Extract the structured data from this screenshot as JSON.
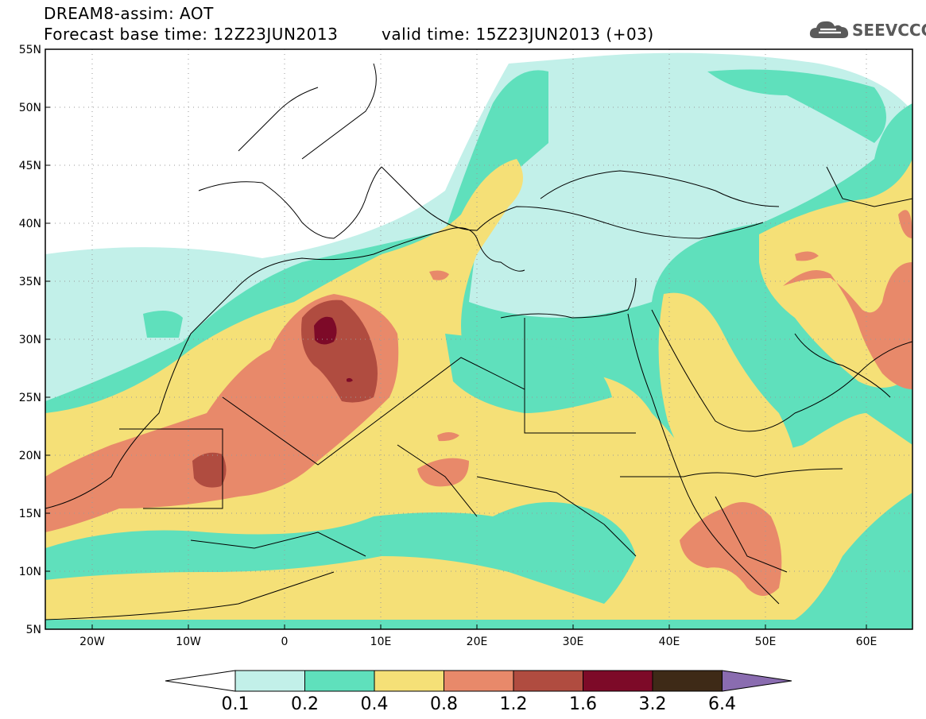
{
  "header": {
    "line1": "DREAM8-assim: AOT",
    "line2": "Forecast base time: 12Z23JUN2013",
    "valid": "valid time: 15Z23JUN2013 (+03)"
  },
  "logo": {
    "icon": "cloud-icon",
    "text": "SEEVCCC"
  },
  "map": {
    "lat_labels": [
      "55N",
      "50N",
      "45N",
      "40N",
      "35N",
      "30N",
      "25N",
      "20N",
      "15N",
      "10N",
      "5N"
    ],
    "lon_labels": [
      "20W",
      "10W",
      "0",
      "10E",
      "20E",
      "30E",
      "40E",
      "50E",
      "60E"
    ],
    "lat_range": [
      5,
      55
    ],
    "lon_range": [
      -25,
      65
    ],
    "grid": "dotted"
  },
  "colorbar": {
    "labels": [
      "0.1",
      "0.2",
      "0.4",
      "0.8",
      "1.2",
      "1.6",
      "3.2",
      "6.4"
    ],
    "colors": [
      "#ffffff",
      "#c2f0e9",
      "#5fe0bc",
      "#f5e077",
      "#e8896a",
      "#b04c40",
      "#7d0a28",
      "#3e2a17",
      "#8a6cb0"
    ]
  }
}
